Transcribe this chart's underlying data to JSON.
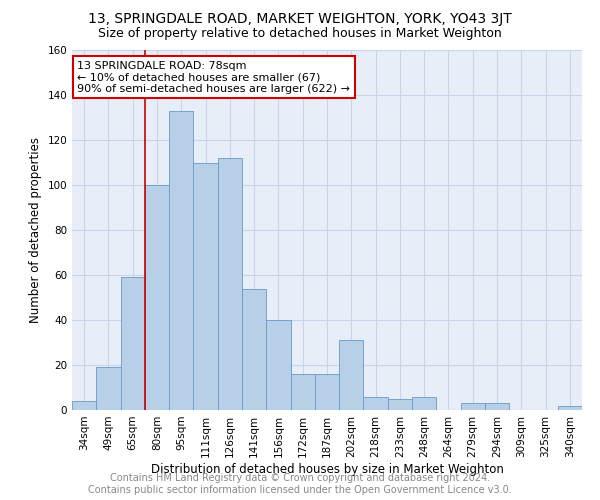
{
  "title": "13, SPRINGDALE ROAD, MARKET WEIGHTON, YORK, YO43 3JT",
  "subtitle": "Size of property relative to detached houses in Market Weighton",
  "xlabel": "Distribution of detached houses by size in Market Weighton",
  "ylabel": "Number of detached properties",
  "categories": [
    "34sqm",
    "49sqm",
    "65sqm",
    "80sqm",
    "95sqm",
    "111sqm",
    "126sqm",
    "141sqm",
    "156sqm",
    "172sqm",
    "187sqm",
    "202sqm",
    "218sqm",
    "233sqm",
    "248sqm",
    "264sqm",
    "279sqm",
    "294sqm",
    "309sqm",
    "325sqm",
    "340sqm"
  ],
  "values": [
    4,
    19,
    59,
    100,
    133,
    110,
    112,
    54,
    40,
    16,
    16,
    31,
    6,
    5,
    6,
    0,
    3,
    3,
    0,
    0,
    2
  ],
  "bar_color": "#b8cfe8",
  "bar_edge_color": "#6699cc",
  "grid_color": "#c8d4e8",
  "background_color": "#e8eef8",
  "vline_x_index": 2.5,
  "vline_color": "#cc0000",
  "annotation_box_text": "13 SPRINGDALE ROAD: 78sqm\n← 10% of detached houses are smaller (67)\n90% of semi-detached houses are larger (622) →",
  "annotation_box_color": "#cc0000",
  "ylim": [
    0,
    160
  ],
  "yticks": [
    0,
    20,
    40,
    60,
    80,
    100,
    120,
    140,
    160
  ],
  "footer_line1": "Contains HM Land Registry data © Crown copyright and database right 2024.",
  "footer_line2": "Contains public sector information licensed under the Open Government Licence v3.0.",
  "title_fontsize": 10,
  "subtitle_fontsize": 9,
  "axis_label_fontsize": 8.5,
  "tick_fontsize": 7.5,
  "footer_fontsize": 7,
  "annotation_fontsize": 8
}
